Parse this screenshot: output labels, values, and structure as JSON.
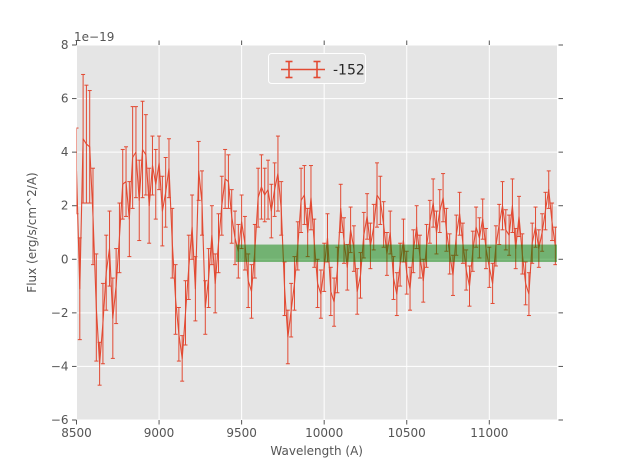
{
  "figure": {
    "background": "#ffffff",
    "plot_background": "#e5e5e5",
    "grid_color": "#ffffff",
    "tick_color": "#555555",
    "text_color": "#555555",
    "legend_text_color": "#262626",
    "legend_face_color": "#e5e5e5",
    "legend_border_color": "#ffffff"
  },
  "axes": {
    "xlabel": "Wavelength (A)",
    "ylabel": "Flux (erg/s/cm^2/A)",
    "offset_text": "1e−19"
  },
  "legend": {
    "label": "-152",
    "marker": "errorbar-icon",
    "line_color": "#e24a33"
  },
  "chart_data": {
    "type": "line",
    "title": "",
    "xlabel": "Wavelength (A)",
    "ylabel": "Flux (erg/s/cm^2/A)",
    "y_unit_multiplier": "1e−19",
    "xlim": [
      8500,
      11410
    ],
    "ylim": [
      -6,
      8
    ],
    "xticks": [
      8500,
      9000,
      9500,
      10000,
      10500,
      11000
    ],
    "yticks": [
      -6,
      -4,
      -2,
      0,
      2,
      4,
      6,
      8
    ],
    "grid": true,
    "legend_position": "upper center",
    "band": {
      "x_range": [
        9465,
        11410
      ],
      "y_range": [
        -0.1,
        0.55
      ],
      "fill": "rgba(0,128,0,0.5)"
    },
    "series": [
      {
        "name": "-152",
        "color": "#e24a33",
        "style": "errorbar",
        "x_start": 8500,
        "x_step": 20,
        "n_points": 146,
        "y": [
          3.3,
          -1.1,
          4.5,
          4.3,
          4.2,
          1.6,
          -1.8,
          -3.9,
          -2.4,
          -0.5,
          0.4,
          -2.2,
          -1.0,
          0.8,
          2.8,
          2.9,
          1.5,
          3.8,
          4.0,
          2.2,
          4.1,
          3.9,
          2.0,
          3.5,
          2.8,
          3.6,
          1.8,
          2.5,
          3.4,
          0.6,
          -1.5,
          -2.8,
          -3.7,
          -2.0,
          -0.3,
          1.2,
          -1.1,
          3.3,
          2.1,
          -1.8,
          -0.7,
          0.9,
          -0.9,
          0.6,
          2.0,
          3.0,
          2.9,
          1.6,
          0.8,
          0.3,
          1.4,
          0.6,
          -0.8,
          -1.2,
          0.3,
          2.3,
          2.7,
          2.4,
          2.6,
          1.8,
          2.6,
          3.2,
          1.9,
          -1.1,
          -2.9,
          -1.9,
          -0.9,
          0.5,
          2.2,
          2.4,
          1.0,
          2.3,
          0.6,
          -0.9,
          -1.3,
          -0.3,
          0.8,
          -1.2,
          -1.6,
          -0.4,
          1.9,
          0.7,
          -0.3,
          1.1,
          0.4,
          -1.2,
          -0.6,
          0.9,
          1.6,
          0.5,
          1.2,
          2.4,
          2.2,
          1.3,
          0.2,
          1.0,
          -0.7,
          -1.3,
          -0.2,
          0.7,
          -0.5,
          -1.1,
          0.3,
          1.2,
          0.1,
          -0.8,
          0.5,
          1.4,
          2.1,
          1.0,
          1.8,
          2.3,
          1.1,
          0.2,
          -0.6,
          0.9,
          1.7,
          0.6,
          -0.4,
          -1.0,
          0.3,
          1.2,
          0.8,
          1.5,
          0.4,
          -0.3,
          -0.9,
          0.5,
          1.3,
          2.0,
          1.1,
          0.9,
          2.0,
          0.4,
          1.6,
          0.2,
          -0.9,
          -1.3,
          0.6,
          1.2,
          0.4,
          1.0,
          1.8,
          2.6,
          1.4,
          0.5
        ],
        "yerr": [
          1.6,
          1.9,
          2.4,
          2.2,
          2.1,
          1.8,
          2.0,
          0.8,
          1.5,
          1.4,
          1.4,
          1.5,
          1.4,
          1.3,
          1.3,
          1.3,
          1.4,
          1.9,
          1.7,
          1.5,
          1.8,
          1.5,
          1.4,
          1.1,
          1.3,
          1.0,
          1.3,
          1.3,
          1.1,
          1.3,
          1.3,
          1.0,
          0.85,
          1.2,
          1.2,
          1.2,
          1.2,
          1.1,
          1.2,
          1.0,
          1.1,
          1.1,
          1.1,
          1.1,
          1.1,
          1.1,
          1.0,
          1.0,
          1.0,
          1.0,
          1.0,
          1.0,
          1.0,
          1.0,
          1.0,
          1.1,
          1.2,
          1.0,
          1.1,
          1.0,
          1.0,
          1.4,
          1.0,
          1.0,
          1.0,
          1.0,
          1.0,
          0.9,
          1.2,
          1.1,
          0.9,
          1.2,
          0.9,
          0.9,
          0.9,
          0.9,
          0.9,
          0.9,
          0.9,
          0.85,
          0.9,
          0.85,
          0.85,
          0.85,
          0.85,
          0.85,
          0.85,
          0.85,
          0.85,
          0.85,
          0.85,
          1.2,
          0.9,
          0.85,
          0.8,
          0.8,
          0.8,
          0.8,
          0.8,
          0.8,
          0.8,
          0.8,
          0.8,
          0.8,
          0.8,
          0.8,
          0.8,
          0.8,
          0.9,
          0.8,
          0.8,
          0.9,
          0.8,
          0.75,
          0.75,
          0.75,
          0.8,
          0.75,
          0.75,
          0.75,
          0.75,
          0.75,
          0.75,
          0.75,
          0.75,
          0.75,
          0.75,
          0.75,
          0.75,
          0.9,
          0.75,
          0.75,
          1.0,
          0.75,
          0.75,
          0.75,
          0.8,
          0.8,
          0.75,
          0.75,
          0.7,
          0.7,
          0.7,
          0.7,
          0.7,
          0.7
        ]
      }
    ]
  }
}
